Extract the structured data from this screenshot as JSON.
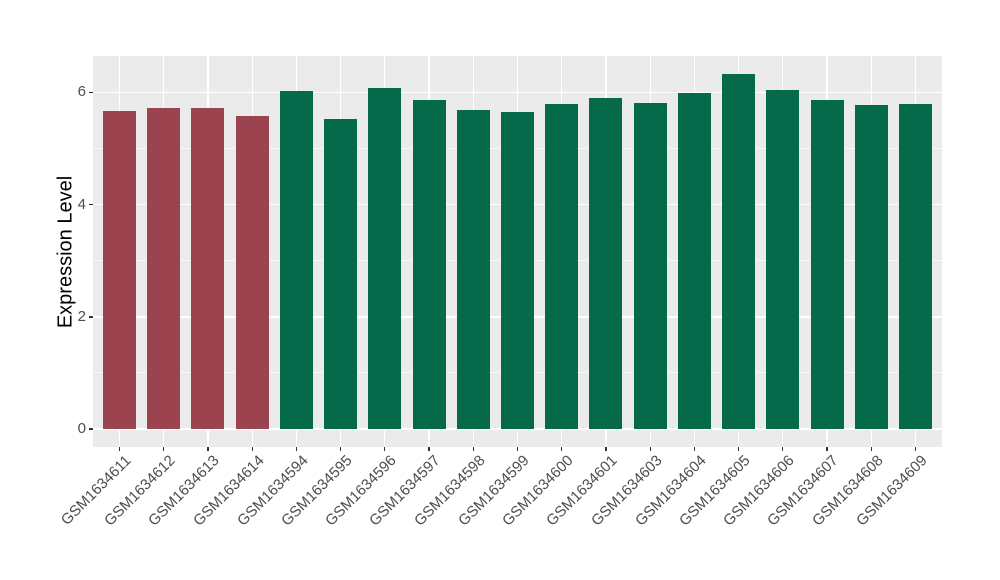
{
  "chart_data": {
    "type": "bar",
    "title": "",
    "xlabel": "",
    "ylabel": "Expression Level",
    "ylim": [
      -0.32,
      6.65
    ],
    "yticks": [
      0,
      2,
      4,
      6
    ],
    "yticks_minor": [
      1,
      3,
      5
    ],
    "grid": "major white horizontal and vertical at category centers, minor horizontal",
    "legend": "none",
    "panel_bg": "#EBEBEB",
    "grid_color": "#FFFFFF",
    "axis_text_color": "#4D4D4D",
    "axis_title_color": "#000000",
    "tick_mark_color": "#333333",
    "bar_colors": {
      "groupA": "#9B4450",
      "groupB": "#056A4A"
    },
    "bars": [
      {
        "label": "GSM1634611",
        "value": 5.67,
        "group": "groupA"
      },
      {
        "label": "GSM1634612",
        "value": 5.72,
        "group": "groupA"
      },
      {
        "label": "GSM1634613",
        "value": 5.72,
        "group": "groupA"
      },
      {
        "label": "GSM1634614",
        "value": 5.58,
        "group": "groupA"
      },
      {
        "label": "GSM1634594",
        "value": 6.03,
        "group": "groupB"
      },
      {
        "label": "GSM1634595",
        "value": 5.53,
        "group": "groupB"
      },
      {
        "label": "GSM1634596",
        "value": 6.08,
        "group": "groupB"
      },
      {
        "label": "GSM1634597",
        "value": 5.86,
        "group": "groupB"
      },
      {
        "label": "GSM1634598",
        "value": 5.69,
        "group": "groupB"
      },
      {
        "label": "GSM1634599",
        "value": 5.66,
        "group": "groupB"
      },
      {
        "label": "GSM1634600",
        "value": 5.79,
        "group": "groupB"
      },
      {
        "label": "GSM1634601",
        "value": 5.9,
        "group": "groupB"
      },
      {
        "label": "GSM1634603",
        "value": 5.81,
        "group": "groupB"
      },
      {
        "label": "GSM1634604",
        "value": 5.99,
        "group": "groupB"
      },
      {
        "label": "GSM1634605",
        "value": 6.33,
        "group": "groupB"
      },
      {
        "label": "GSM1634606",
        "value": 6.04,
        "group": "groupB"
      },
      {
        "label": "GSM1634607",
        "value": 5.86,
        "group": "groupB"
      },
      {
        "label": "GSM1634608",
        "value": 5.78,
        "group": "groupB"
      },
      {
        "label": "GSM1634609",
        "value": 5.79,
        "group": "groupB"
      }
    ]
  }
}
